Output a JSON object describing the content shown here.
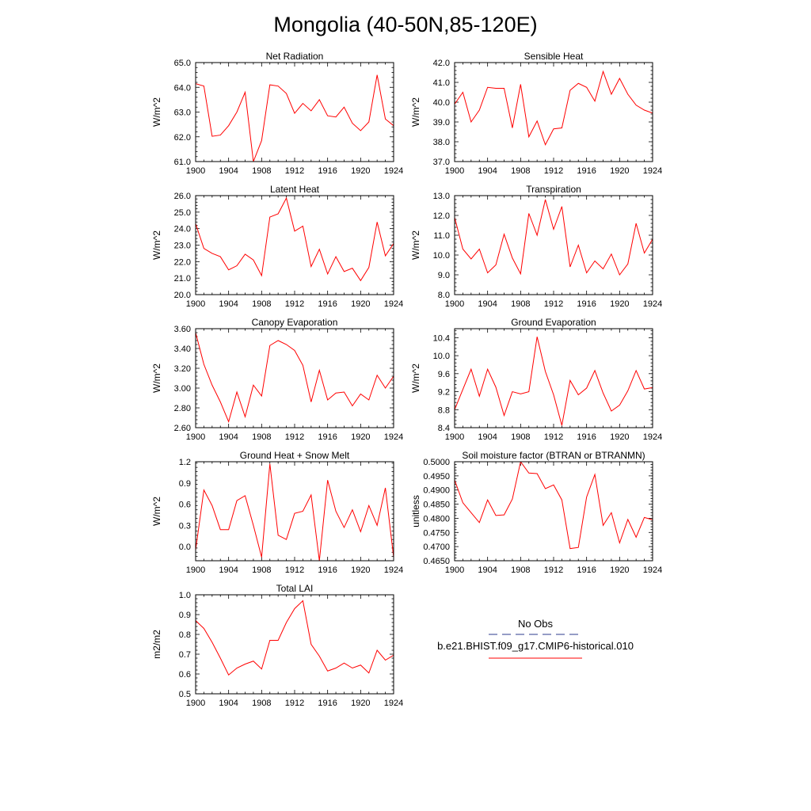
{
  "figure": {
    "title": "Mongolia (40-50N,85-120E)"
  },
  "legend": {
    "obs_label": "No Obs",
    "model_label": "b.e21.BHIST.f09_g17.CMIP6-historical.010",
    "obs_color": "#2b3b8c",
    "model_color": "#ff0000"
  },
  "chart_data": [
    {
      "type": "line",
      "title": "Net Radiation",
      "ylabel": "W/m^2",
      "xlim": [
        1900,
        1924
      ],
      "ylim": [
        61.0,
        65.0
      ],
      "xticks": [
        "1900",
        "1904",
        "1908",
        "1912",
        "1916",
        "1920",
        "1924"
      ],
      "yticks": [
        "61.0",
        "62.0",
        "63.0",
        "64.0",
        "65.0"
      ],
      "grid": false,
      "x": [
        1900,
        1901,
        1902,
        1903,
        1904,
        1905,
        1906,
        1907,
        1908,
        1909,
        1910,
        1911,
        1912,
        1913,
        1914,
        1915,
        1916,
        1917,
        1918,
        1919,
        1920,
        1921,
        1922,
        1923,
        1924
      ],
      "series": [
        {
          "color": "#ff0000",
          "values": [
            64.15,
            64.05,
            62.02,
            62.07,
            62.45,
            63.0,
            63.8,
            61.0,
            61.85,
            64.1,
            64.05,
            63.75,
            62.95,
            63.35,
            63.05,
            63.5,
            62.85,
            62.8,
            63.2,
            62.55,
            62.25,
            62.6,
            64.5,
            62.72,
            62.45
          ]
        }
      ]
    },
    {
      "type": "line",
      "title": "Sensible Heat",
      "ylabel": "W/m^2",
      "xlim": [
        1900,
        1924
      ],
      "ylim": [
        37.0,
        42.0
      ],
      "xticks": [
        "1900",
        "1904",
        "1908",
        "1912",
        "1916",
        "1920",
        "1924"
      ],
      "yticks": [
        "37.0",
        "38.0",
        "39.0",
        "40.0",
        "41.0",
        "42.0"
      ],
      "grid": false,
      "x": [
        1900,
        1901,
        1902,
        1903,
        1904,
        1905,
        1906,
        1907,
        1908,
        1909,
        1910,
        1911,
        1912,
        1913,
        1914,
        1915,
        1916,
        1917,
        1918,
        1919,
        1920,
        1921,
        1922,
        1923,
        1924
      ],
      "series": [
        {
          "color": "#ff0000",
          "values": [
            39.9,
            40.5,
            39.0,
            39.6,
            40.75,
            40.7,
            40.7,
            38.7,
            40.9,
            38.25,
            39.05,
            37.85,
            38.65,
            38.7,
            40.6,
            40.95,
            40.75,
            40.05,
            41.55,
            40.4,
            41.2,
            40.4,
            39.85,
            39.6,
            39.45
          ]
        }
      ]
    },
    {
      "type": "line",
      "title": "Latent Heat",
      "ylabel": "W/m^2",
      "xlim": [
        1900,
        1924
      ],
      "ylim": [
        20.0,
        26.0
      ],
      "xticks": [
        "1900",
        "1904",
        "1908",
        "1912",
        "1916",
        "1920",
        "1924"
      ],
      "yticks": [
        "20.0",
        "21.0",
        "22.0",
        "23.0",
        "24.0",
        "25.0",
        "26.0"
      ],
      "grid": false,
      "x": [
        1900,
        1901,
        1902,
        1903,
        1904,
        1905,
        1906,
        1907,
        1908,
        1909,
        1910,
        1911,
        1912,
        1913,
        1914,
        1915,
        1916,
        1917,
        1918,
        1919,
        1920,
        1921,
        1922,
        1923,
        1924
      ],
      "series": [
        {
          "color": "#ff0000",
          "values": [
            24.3,
            22.8,
            22.5,
            22.3,
            21.5,
            21.75,
            22.45,
            22.1,
            21.15,
            24.7,
            24.9,
            25.85,
            23.85,
            24.15,
            21.7,
            22.75,
            21.25,
            22.3,
            21.4,
            21.6,
            20.85,
            21.65,
            24.4,
            22.35,
            23.1
          ]
        }
      ]
    },
    {
      "type": "line",
      "title": "Transpiration",
      "ylabel": "W/m^2",
      "xlim": [
        1900,
        1924
      ],
      "ylim": [
        8.0,
        13.0
      ],
      "xticks": [
        "1900",
        "1904",
        "1908",
        "1912",
        "1916",
        "1920",
        "1924"
      ],
      "yticks": [
        "8.0",
        "9.0",
        "10.0",
        "11.0",
        "12.0",
        "13.0"
      ],
      "grid": false,
      "x": [
        1900,
        1901,
        1902,
        1903,
        1904,
        1905,
        1906,
        1907,
        1908,
        1909,
        1910,
        1911,
        1912,
        1913,
        1914,
        1915,
        1916,
        1917,
        1918,
        1919,
        1920,
        1921,
        1922,
        1923,
        1924
      ],
      "series": [
        {
          "color": "#ff0000",
          "values": [
            11.9,
            10.3,
            9.8,
            10.3,
            9.1,
            9.5,
            11.05,
            9.85,
            9.05,
            12.1,
            11.0,
            12.8,
            11.3,
            12.45,
            9.4,
            10.5,
            9.1,
            9.7,
            9.3,
            10.05,
            9.0,
            9.55,
            11.6,
            10.1,
            10.8
          ]
        }
      ]
    },
    {
      "type": "line",
      "title": "Canopy Evaporation",
      "ylabel": "W/m^2",
      "xlim": [
        1900,
        1924
      ],
      "ylim": [
        2.6,
        3.6
      ],
      "xticks": [
        "1900",
        "1904",
        "1908",
        "1912",
        "1916",
        "1920",
        "1924"
      ],
      "yticks": [
        "2.60",
        "2.80",
        "3.00",
        "3.20",
        "3.40",
        "3.60"
      ],
      "grid": false,
      "x": [
        1900,
        1901,
        1902,
        1903,
        1904,
        1905,
        1906,
        1907,
        1908,
        1909,
        1910,
        1911,
        1912,
        1913,
        1914,
        1915,
        1916,
        1917,
        1918,
        1919,
        1920,
        1921,
        1922,
        1923,
        1924
      ],
      "series": [
        {
          "color": "#ff0000",
          "values": [
            3.56,
            3.24,
            3.03,
            2.86,
            2.66,
            2.96,
            2.71,
            3.03,
            2.92,
            3.43,
            3.48,
            3.44,
            3.38,
            3.23,
            2.86,
            3.18,
            2.88,
            2.95,
            2.96,
            2.82,
            2.94,
            2.88,
            3.13,
            3.0,
            3.12
          ]
        }
      ]
    },
    {
      "type": "line",
      "title": "Ground Evaporation",
      "ylabel": "W/m^2",
      "xlim": [
        1900,
        1924
      ],
      "ylim": [
        8.4,
        10.6
      ],
      "xticks": [
        "1900",
        "1904",
        "1908",
        "1912",
        "1916",
        "1920",
        "1924"
      ],
      "yticks": [
        "8.4",
        "8.8",
        "9.2",
        "9.6",
        "10.0",
        "10.4"
      ],
      "grid": false,
      "x": [
        1900,
        1901,
        1902,
        1903,
        1904,
        1905,
        1906,
        1907,
        1908,
        1909,
        1910,
        1911,
        1912,
        1913,
        1914,
        1915,
        1916,
        1917,
        1918,
        1919,
        1920,
        1921,
        1922,
        1923,
        1924
      ],
      "series": [
        {
          "color": "#ff0000",
          "values": [
            8.8,
            9.25,
            9.7,
            9.1,
            9.7,
            9.3,
            8.67,
            9.2,
            9.15,
            9.2,
            10.42,
            9.65,
            9.13,
            8.45,
            9.45,
            9.13,
            9.28,
            9.67,
            9.17,
            8.77,
            8.9,
            9.22,
            9.67,
            9.26,
            9.29
          ]
        }
      ]
    },
    {
      "type": "line",
      "title": "Ground Heat + Snow Melt",
      "ylabel": "W/m^2",
      "xlim": [
        1900,
        1924
      ],
      "ylim": [
        -0.2,
        1.2
      ],
      "xticks": [
        "1900",
        "1904",
        "1908",
        "1912",
        "1916",
        "1920",
        "1924"
      ],
      "yticks": [
        "0.0",
        "0.3",
        "0.6",
        "0.9",
        "1.2"
      ],
      "grid": false,
      "x": [
        1900,
        1901,
        1902,
        1903,
        1904,
        1905,
        1906,
        1907,
        1908,
        1909,
        1910,
        1911,
        1912,
        1913,
        1914,
        1915,
        1916,
        1917,
        1918,
        1919,
        1920,
        1921,
        1922,
        1923,
        1924
      ],
      "series": [
        {
          "color": "#ff0000",
          "values": [
            -0.05,
            0.8,
            0.58,
            0.24,
            0.24,
            0.65,
            0.72,
            0.3,
            -0.15,
            1.17,
            0.16,
            0.1,
            0.47,
            0.5,
            0.73,
            -0.2,
            0.94,
            0.5,
            0.27,
            0.52,
            0.21,
            0.58,
            0.3,
            0.83,
            -0.15
          ]
        }
      ]
    },
    {
      "type": "line",
      "title": "Soil moisture factor (BTRAN or BTRANMN)",
      "ylabel": "unitless",
      "xlim": [
        1900,
        1924
      ],
      "ylim": [
        0.465,
        0.5
      ],
      "xticks": [
        "1900",
        "1904",
        "1908",
        "1912",
        "1916",
        "1920",
        "1924"
      ],
      "yticks": [
        "0.4650",
        "0.4700",
        "0.4750",
        "0.4800",
        "0.4850",
        "0.4900",
        "0.4950",
        "0.5000"
      ],
      "grid": false,
      "x": [
        1900,
        1901,
        1902,
        1903,
        1904,
        1905,
        1906,
        1907,
        1908,
        1909,
        1910,
        1911,
        1912,
        1913,
        1914,
        1915,
        1916,
        1917,
        1918,
        1919,
        1920,
        1921,
        1922,
        1923,
        1924
      ],
      "series": [
        {
          "color": "#ff0000",
          "values": [
            0.4935,
            0.4855,
            0.482,
            0.4785,
            0.4865,
            0.481,
            0.4812,
            0.4868,
            0.5,
            0.496,
            0.4958,
            0.4905,
            0.4918,
            0.4865,
            0.4693,
            0.4697,
            0.4875,
            0.4955,
            0.4775,
            0.482,
            0.4713,
            0.4796,
            0.4733,
            0.4803,
            0.4795
          ]
        }
      ]
    },
    {
      "type": "line",
      "title": "Total LAI",
      "ylabel": "m2/m2",
      "xlim": [
        1900,
        1924
      ],
      "ylim": [
        0.5,
        1.0
      ],
      "xticks": [
        "1900",
        "1904",
        "1908",
        "1912",
        "1916",
        "1920",
        "1924"
      ],
      "yticks": [
        "0.5",
        "0.6",
        "0.7",
        "0.8",
        "0.9",
        "1.0"
      ],
      "grid": false,
      "x": [
        1900,
        1901,
        1902,
        1903,
        1904,
        1905,
        1906,
        1907,
        1908,
        1909,
        1910,
        1911,
        1912,
        1913,
        1914,
        1915,
        1916,
        1917,
        1918,
        1919,
        1920,
        1921,
        1922,
        1923,
        1924
      ],
      "series": [
        {
          "color": "#ff0000",
          "values": [
            0.87,
            0.83,
            0.76,
            0.68,
            0.595,
            0.63,
            0.65,
            0.665,
            0.625,
            0.77,
            0.77,
            0.86,
            0.93,
            0.97,
            0.75,
            0.69,
            0.615,
            0.63,
            0.655,
            0.63,
            0.645,
            0.605,
            0.72,
            0.67,
            0.695
          ]
        }
      ]
    }
  ]
}
